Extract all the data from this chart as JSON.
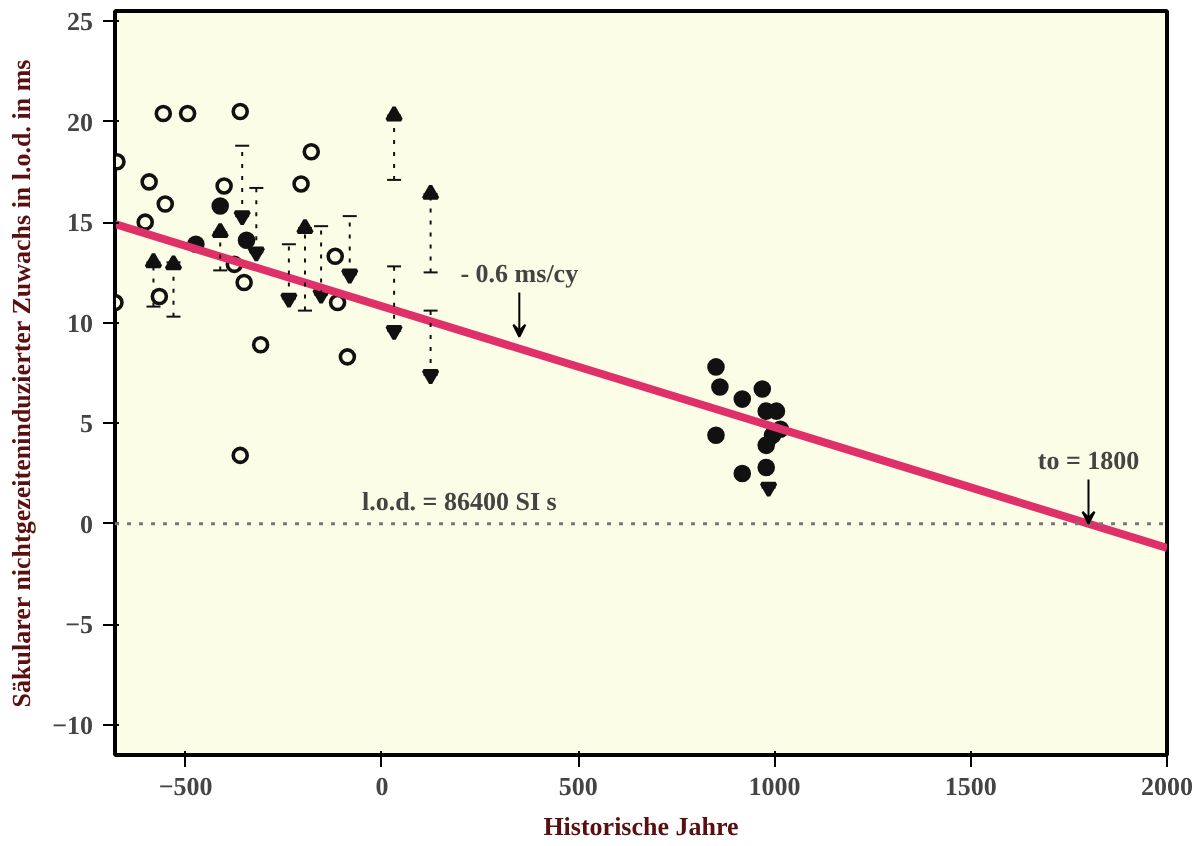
{
  "chart_data": {
    "type": "scatter",
    "xlabel": "Historische Jahre",
    "ylabel": "Säkularer nichtgezeiteninduzierter Zuwachs in l.o.d. in ms",
    "xlim": [
      -680,
      2000
    ],
    "ylim": [
      -11.5,
      25.5
    ],
    "xticks": [
      -500,
      0,
      500,
      1000,
      1500,
      2000
    ],
    "yticks": [
      -10,
      -5,
      0,
      5,
      10,
      15,
      20,
      25
    ],
    "grid": false,
    "series": [
      {
        "marker": "circle",
        "color": "#fbfde6",
        "x": [
          -675,
          -680,
          -593,
          -557,
          -495,
          -361,
          -180,
          -206,
          -402,
          -603,
          -552,
          -567,
          -351,
          -376,
          -309,
          -361,
          -88,
          -113,
          -119
        ],
        "values": [
          18.0,
          11.0,
          17.0,
          20.4,
          20.4,
          20.5,
          18.5,
          16.9,
          16.8,
          15.0,
          15.9,
          11.3,
          12.0,
          12.9,
          8.9,
          3.4,
          8.3,
          11.0,
          13.3
        ]
      },
      {
        "marker": "circle",
        "color": "#111111",
        "x": [
          -412,
          -474,
          -345,
          851,
          861,
          918,
          969,
          851,
          918,
          979,
          1005,
          1015,
          979,
          979,
          995
        ],
        "values": [
          15.8,
          13.9,
          14.1,
          7.8,
          6.8,
          6.2,
          6.7,
          4.4,
          2.5,
          5.6,
          5.6,
          4.7,
          3.9,
          2.8,
          4.4
        ]
      },
      {
        "marker": "triangle",
        "color": "#111111",
        "x": [
          -582,
          -531,
          -412,
          -196,
          31,
          124
        ],
        "values": [
          13.0,
          12.9,
          14.5,
          14.7,
          20.3,
          16.4
        ],
        "errors": [
          [
            10.8,
            13.0
          ],
          [
            10.3,
            13.0
          ],
          [
            12.6,
            14.5
          ],
          [
            10.6,
            14.7
          ],
          [
            17.1,
            20.3
          ],
          [
            12.5,
            16.4
          ]
        ]
      },
      {
        "marker": "triangle",
        "color": "#111111",
        "x": [
          -356,
          -320,
          -237,
          -155,
          -82,
          31,
          124,
          985
        ],
        "values": [
          15.3,
          13.5,
          11.2,
          11.4,
          12.4,
          9.6,
          7.4,
          1.8
        ],
        "errors": [
          [
            15.3,
            18.8
          ],
          [
            13.5,
            16.7
          ],
          [
            11.2,
            13.9
          ],
          [
            11.4,
            14.8
          ],
          [
            12.4,
            15.3
          ],
          [
            9.6,
            12.8
          ],
          [
            7.4,
            10.6
          ],
          [
            1.8,
            4.0
          ]
        ]
      },
      {
        "type": "line",
        "color": "#e0306a",
        "x": [
          -680,
          2000
        ],
        "values": [
          14.9,
          -1.2
        ]
      }
    ],
    "ref_lines": [
      {
        "axis": "y",
        "value": 0,
        "line_style": "dotted",
        "color": "#777777"
      }
    ],
    "annotations": [
      "l.o.d. = 86400 SI s",
      {
        "text": "- 0.6 ms/cy",
        "x": 350,
        "y": 9.3
      },
      {
        "text": "to = 1800",
        "x": 1800,
        "y": 0
      }
    ]
  }
}
